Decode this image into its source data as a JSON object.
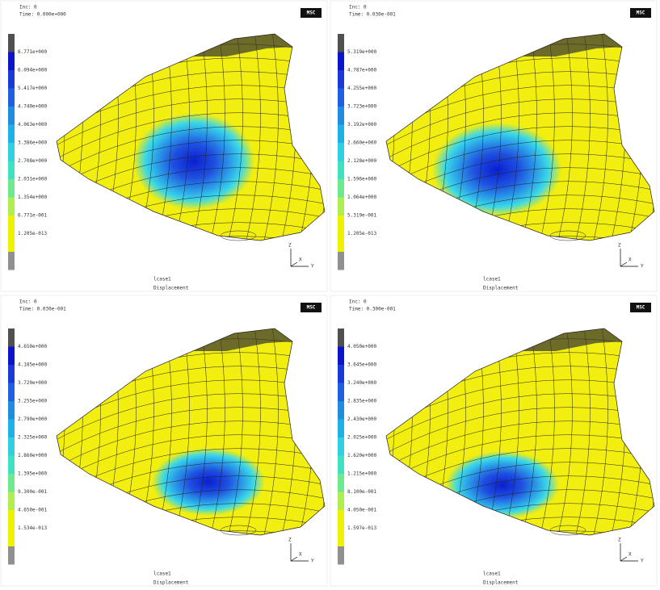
{
  "panels": [
    {
      "inc": "Inc:  0",
      "time": "Time:  0.000e+000",
      "logo": "MSC",
      "legend": [
        "6.771e+000",
        "6.094e+000",
        "5.417e+000",
        "4.740e+000",
        "4.063e+000",
        "3.386e+000",
        "2.708e+000",
        "2.031e+000",
        "1.354e+000",
        "6.771e-001",
        "1.205e-013"
      ],
      "case": "lcase1",
      "quantity": "Displacement",
      "axes": [
        "Z",
        "Y",
        "X"
      ]
    },
    {
      "inc": "Inc:  0",
      "time": "Time:  0.030e-001",
      "logo": "MSC",
      "legend": [
        "5.319e+000",
        "4.787e+000",
        "4.255e+000",
        "3.723e+000",
        "3.192e+000",
        "2.660e+000",
        "2.128e+000",
        "1.596e+000",
        "1.064e+000",
        "5.319e-001",
        "1.205e-013"
      ],
      "case": "lcase1",
      "quantity": "Displacement",
      "axes": [
        "Z",
        "Y",
        "X"
      ]
    },
    {
      "inc": "Inc:  0",
      "time": "Time:  0.030e-001",
      "logo": "MSC",
      "legend": [
        "4.650e+000",
        "4.185e+000",
        "3.720e+000",
        "3.255e+000",
        "2.790e+000",
        "2.325e+000",
        "1.860e+000",
        "1.395e+000",
        "9.300e-001",
        "4.650e-001",
        "1.534e-013"
      ],
      "case": "lcase1",
      "quantity": "Displacement",
      "axes": [
        "Z",
        "Y",
        "X"
      ]
    },
    {
      "inc": "Inc:  0",
      "time": "Time:  0.300e-001",
      "logo": "MSC",
      "legend": [
        "4.050e+000",
        "3.645e+000",
        "3.240e+000",
        "2.835e+000",
        "2.430e+000",
        "2.025e+000",
        "1.620e+000",
        "1.215e+000",
        "8.100e-001",
        "4.050e-001",
        "1.597e-013"
      ],
      "case": "lcase1",
      "quantity": "Displacement",
      "axes": [
        "Z",
        "Y",
        "X"
      ]
    }
  ]
}
